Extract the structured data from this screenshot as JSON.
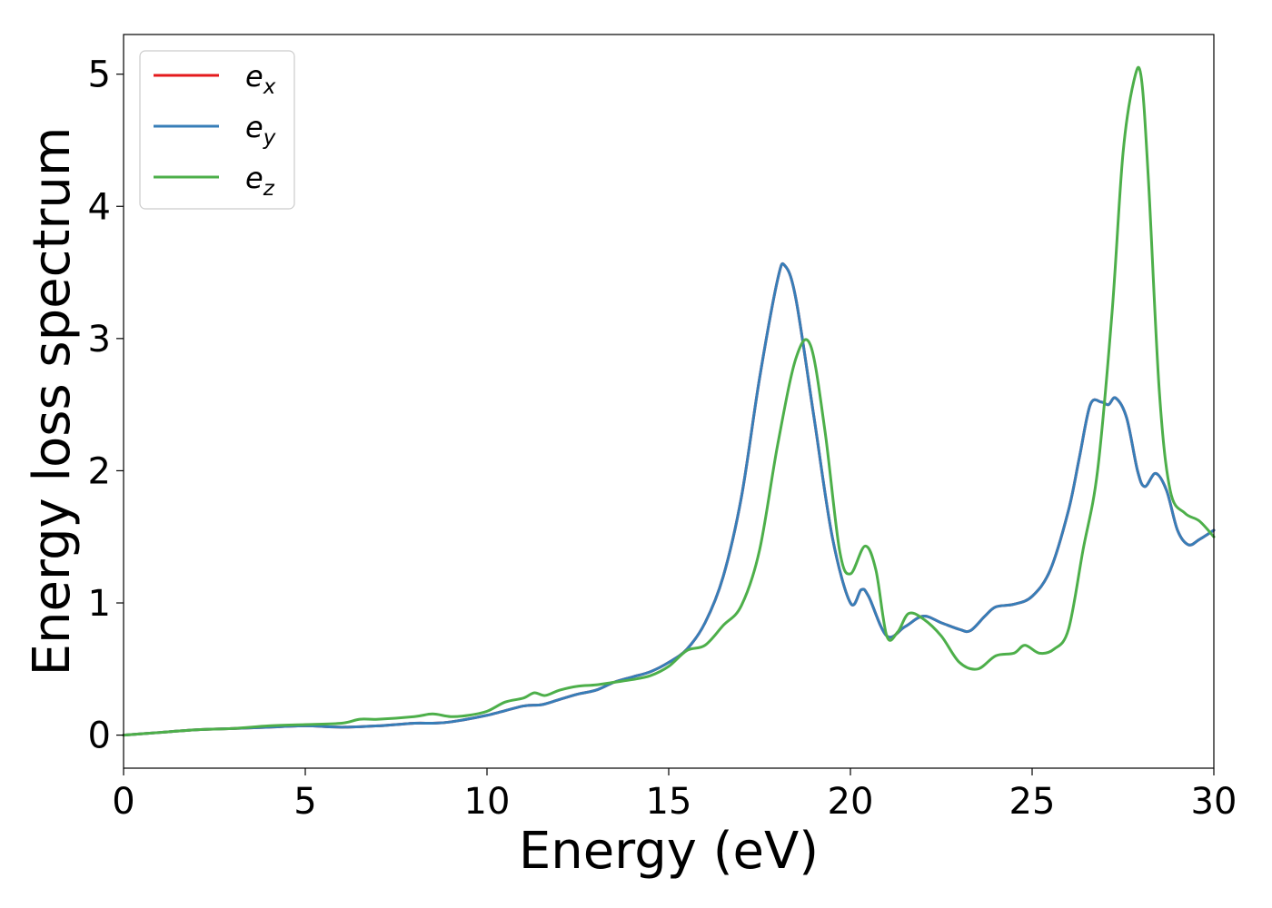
{
  "chart_data": {
    "type": "line",
    "xlabel": "Energy (eV)",
    "ylabel": "Energy loss spectrum",
    "xlim": [
      0,
      30
    ],
    "ylim": [
      -0.25,
      5.3
    ],
    "xticks": [
      0,
      5,
      10,
      15,
      20,
      25,
      30
    ],
    "yticks": [
      0,
      1,
      2,
      3,
      4,
      5
    ],
    "grid": false,
    "legend_position": "top-left",
    "series": [
      {
        "name": "e",
        "subscript": "x",
        "color": "#e41a1c",
        "x": [
          0,
          1,
          2,
          3,
          4,
          5,
          6,
          7,
          8,
          8.5,
          9,
          10,
          11,
          11.5,
          12,
          12.5,
          13,
          13.5,
          14,
          14.5,
          15,
          15.5,
          16,
          16.5,
          17,
          17.5,
          18,
          18.2,
          18.5,
          19,
          19.5,
          20,
          20.3,
          20.5,
          21,
          21.5,
          22,
          22.5,
          23,
          23.3,
          23.7,
          24,
          24.5,
          25,
          25.5,
          26,
          26.3,
          26.6,
          26.9,
          27.1,
          27.3,
          27.6,
          27.9,
          28.1,
          28.4,
          28.7,
          29,
          29.3,
          29.6,
          30
        ],
        "y": [
          0,
          0.02,
          0.04,
          0.05,
          0.06,
          0.07,
          0.06,
          0.07,
          0.09,
          0.09,
          0.1,
          0.15,
          0.22,
          0.23,
          0.27,
          0.31,
          0.34,
          0.4,
          0.44,
          0.48,
          0.55,
          0.65,
          0.85,
          1.2,
          1.8,
          2.7,
          3.45,
          3.55,
          3.3,
          2.4,
          1.5,
          1.0,
          1.1,
          1.05,
          0.75,
          0.82,
          0.9,
          0.85,
          0.8,
          0.79,
          0.9,
          0.97,
          0.99,
          1.05,
          1.25,
          1.7,
          2.1,
          2.5,
          2.52,
          2.5,
          2.55,
          2.4,
          2.0,
          1.88,
          1.98,
          1.85,
          1.55,
          1.44,
          1.48,
          1.55
        ]
      },
      {
        "name": "e",
        "subscript": "y",
        "color": "#377eb8",
        "x": [
          0,
          1,
          2,
          3,
          4,
          5,
          6,
          7,
          8,
          8.5,
          9,
          10,
          11,
          11.5,
          12,
          12.5,
          13,
          13.5,
          14,
          14.5,
          15,
          15.5,
          16,
          16.5,
          17,
          17.5,
          18,
          18.2,
          18.5,
          19,
          19.5,
          20,
          20.3,
          20.5,
          21,
          21.5,
          22,
          22.5,
          23,
          23.3,
          23.7,
          24,
          24.5,
          25,
          25.5,
          26,
          26.3,
          26.6,
          26.9,
          27.1,
          27.3,
          27.6,
          27.9,
          28.1,
          28.4,
          28.7,
          29,
          29.3,
          29.6,
          30
        ],
        "y": [
          0,
          0.02,
          0.04,
          0.05,
          0.06,
          0.07,
          0.06,
          0.07,
          0.09,
          0.09,
          0.1,
          0.15,
          0.22,
          0.23,
          0.27,
          0.31,
          0.34,
          0.4,
          0.44,
          0.48,
          0.55,
          0.65,
          0.85,
          1.2,
          1.8,
          2.7,
          3.45,
          3.55,
          3.3,
          2.4,
          1.5,
          1.0,
          1.1,
          1.05,
          0.75,
          0.82,
          0.9,
          0.85,
          0.8,
          0.79,
          0.9,
          0.97,
          0.99,
          1.05,
          1.25,
          1.7,
          2.1,
          2.5,
          2.52,
          2.5,
          2.55,
          2.4,
          2.0,
          1.88,
          1.98,
          1.85,
          1.55,
          1.44,
          1.48,
          1.55
        ]
      },
      {
        "name": "e",
        "subscript": "z",
        "color": "#4daf4a",
        "x": [
          0,
          1,
          2,
          3,
          4,
          5,
          6,
          6.5,
          7,
          8,
          8.5,
          9,
          9.5,
          10,
          10.5,
          11,
          11.3,
          11.6,
          12,
          12.5,
          13,
          13.5,
          14,
          14.5,
          15,
          15.5,
          16,
          16.5,
          17,
          17.5,
          18,
          18.5,
          18.9,
          19.3,
          19.7,
          20,
          20.4,
          20.7,
          21,
          21.3,
          21.6,
          22,
          22.5,
          23,
          23.5,
          24,
          24.5,
          24.8,
          25.2,
          25.6,
          26,
          26.4,
          26.8,
          27.2,
          27.5,
          27.8,
          28,
          28.2,
          28.5,
          28.8,
          29.2,
          29.6,
          30
        ],
        "y": [
          0,
          0.02,
          0.04,
          0.05,
          0.07,
          0.08,
          0.09,
          0.12,
          0.12,
          0.14,
          0.16,
          0.14,
          0.15,
          0.18,
          0.25,
          0.28,
          0.32,
          0.3,
          0.34,
          0.37,
          0.38,
          0.4,
          0.42,
          0.45,
          0.52,
          0.64,
          0.68,
          0.83,
          0.98,
          1.4,
          2.2,
          2.85,
          2.95,
          2.3,
          1.4,
          1.22,
          1.43,
          1.25,
          0.75,
          0.78,
          0.92,
          0.88,
          0.75,
          0.55,
          0.5,
          0.6,
          0.62,
          0.68,
          0.62,
          0.65,
          0.8,
          1.4,
          2.0,
          3.2,
          4.4,
          4.95,
          4.98,
          4.2,
          2.6,
          1.85,
          1.68,
          1.62,
          1.5
        ]
      }
    ]
  }
}
